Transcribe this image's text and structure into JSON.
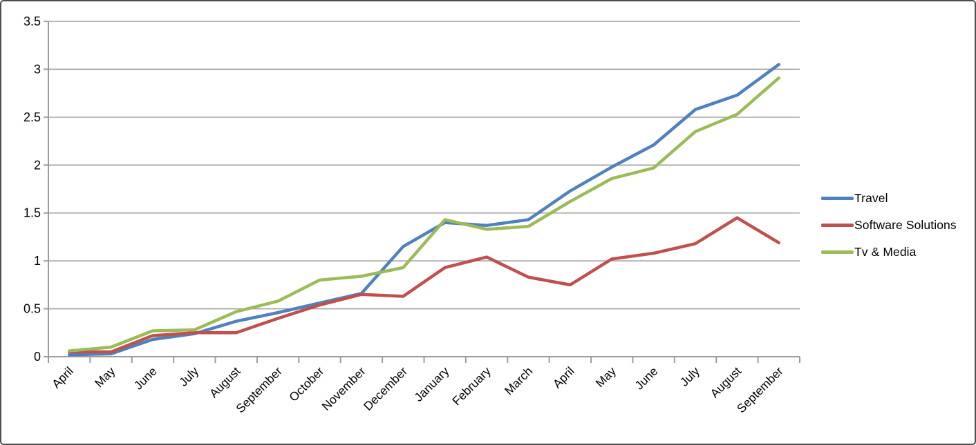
{
  "window": {
    "background_color": "#ffffff",
    "frame_border_color": "#4d4d4d"
  },
  "chart_data": {
    "type": "line",
    "title": "",
    "xlabel": "",
    "ylabel": "",
    "categories": [
      "April",
      "May",
      "June",
      "July",
      "August",
      "September",
      "October",
      "November",
      "December",
      "January",
      "February",
      "March",
      "April",
      "May",
      "June",
      "July",
      "August",
      "September"
    ],
    "series": [
      {
        "name": "Travel",
        "color": "#4F81BD",
        "values": [
          0.02,
          0.03,
          0.18,
          0.24,
          0.37,
          0.46,
          0.56,
          0.66,
          1.15,
          1.4,
          1.37,
          1.43,
          1.73,
          1.98,
          2.21,
          2.58,
          2.73,
          3.05
        ]
      },
      {
        "name": "Software Solutions",
        "color": "#C0504D",
        "values": [
          0.05,
          0.05,
          0.22,
          0.25,
          0.25,
          0.4,
          0.54,
          0.65,
          0.63,
          0.93,
          1.04,
          0.83,
          0.75,
          1.02,
          1.08,
          1.18,
          1.45,
          1.19
        ]
      },
      {
        "name": "Tv & Media",
        "color": "#9BBB59",
        "values": [
          0.06,
          0.1,
          0.27,
          0.28,
          0.47,
          0.58,
          0.8,
          0.84,
          0.93,
          1.43,
          1.33,
          1.36,
          1.62,
          1.86,
          1.97,
          2.35,
          2.53,
          2.91
        ]
      }
    ],
    "y_axis": {
      "min": 0,
      "max": 3.5,
      "step": 0.5,
      "tick_labels": [
        "0",
        "0.5",
        "1",
        "1.5",
        "2",
        "2.5",
        "3",
        "3.5"
      ]
    },
    "x_axis": {
      "label_rotation_deg": -45
    },
    "grid": true,
    "legend_position": "right",
    "style": {
      "grid_color": "#9c9c9c",
      "axis_color": "#9c9c9c",
      "tick_text_color": "#000000",
      "line_width": 4.5
    }
  },
  "legend": {
    "items": [
      {
        "label": "Travel"
      },
      {
        "label": "Software Solutions"
      },
      {
        "label": "Tv & Media"
      }
    ]
  }
}
